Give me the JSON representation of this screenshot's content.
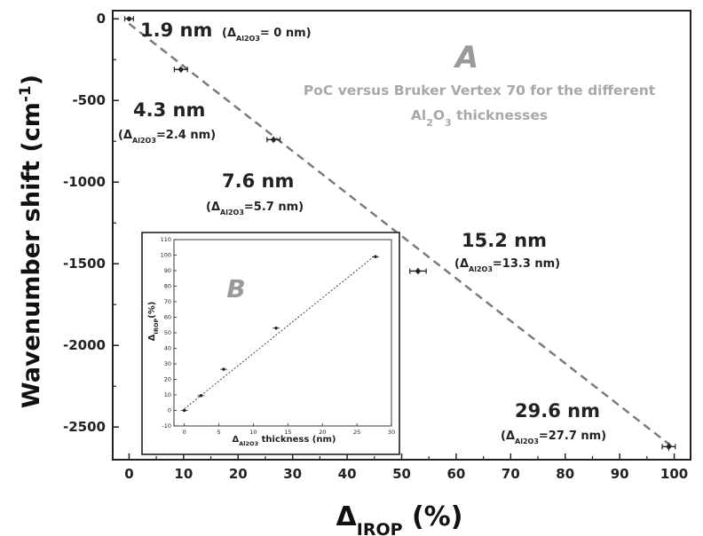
{
  "chart_data": [
    {
      "type": "scatter",
      "title": "",
      "caption_line1": "PoC versus Bruker Vertex 70 for the different",
      "caption_line2_prefix": "Al",
      "caption_line2_sub1": "2",
      "caption_line2_mid": "O",
      "caption_line2_sub2": "3",
      "caption_line2_suffix": " thicknesses",
      "panel_label": "A",
      "xlabel_prefix": "Δ",
      "xlabel_sub": "IROP",
      "xlabel_suffix": " (%)",
      "ylabel_prefix": "Wavenumber shift (cm",
      "ylabel_sup": "-1",
      "ylabel_suffix": ")",
      "xlim": [
        -3,
        103
      ],
      "ylim": [
        -2700,
        50
      ],
      "xticks": [
        0,
        10,
        20,
        30,
        40,
        50,
        60,
        70,
        80,
        90,
        100
      ],
      "yticks": [
        0,
        -500,
        -1000,
        -1500,
        -2000,
        -2500
      ],
      "grid": false,
      "series": [
        {
          "x": [
            0,
            9.5,
            26.5,
            53,
            99
          ],
          "y": [
            0,
            -310,
            -740,
            -1545,
            -2620
          ],
          "xerr": [
            0.8,
            1.2,
            1.2,
            1.5,
            1.2
          ],
          "yerr": [
            15,
            20,
            20,
            20,
            25
          ]
        }
      ],
      "fit_line": {
        "x": [
          0,
          100
        ],
        "y": [
          -30,
          -2630
        ]
      },
      "annotations": [
        {
          "main": "1.9 nm",
          "sub": "(Δ",
          "subscript": "Al2O3",
          "sub_tail": "= 0 nm)"
        },
        {
          "main": "4.3 nm",
          "sub": "(Δ",
          "subscript": "Al2O3",
          "sub_tail": "=2.4 nm)"
        },
        {
          "main": "7.6 nm",
          "sub": "(Δ",
          "subscript": "Al2O3",
          "sub_tail": "=5.7 nm)"
        },
        {
          "main": "15.2 nm",
          "sub": "(Δ",
          "subscript": "Al2O3",
          "sub_tail": "=13.3 nm)"
        },
        {
          "main": "29.6 nm",
          "sub": "(Δ",
          "subscript": "Al2O3",
          "sub_tail": "=27.7 nm)"
        }
      ]
    },
    {
      "type": "scatter",
      "panel_label": "B",
      "xlabel_prefix": "Δ",
      "xlabel_sub": "Al2O3",
      "xlabel_suffix": " thickness (nm)",
      "ylabel_prefix": "Δ",
      "ylabel_sub": "IROP",
      "ylabel_suffix": "(%)",
      "xlim": [
        -1.5,
        30
      ],
      "ylim": [
        -10,
        110
      ],
      "xticks": [
        0,
        5,
        10,
        15,
        20,
        25,
        30
      ],
      "yticks": [
        -10,
        0,
        10,
        20,
        30,
        40,
        50,
        60,
        70,
        80,
        90,
        100,
        110
      ],
      "grid": false,
      "series": [
        {
          "x": [
            0,
            2.4,
            5.7,
            13.3,
            27.7
          ],
          "y": [
            0,
            9.5,
            26.5,
            53,
            99
          ]
        }
      ],
      "fit_line": {
        "x": [
          0,
          27.7
        ],
        "y": [
          1,
          100
        ]
      }
    }
  ]
}
